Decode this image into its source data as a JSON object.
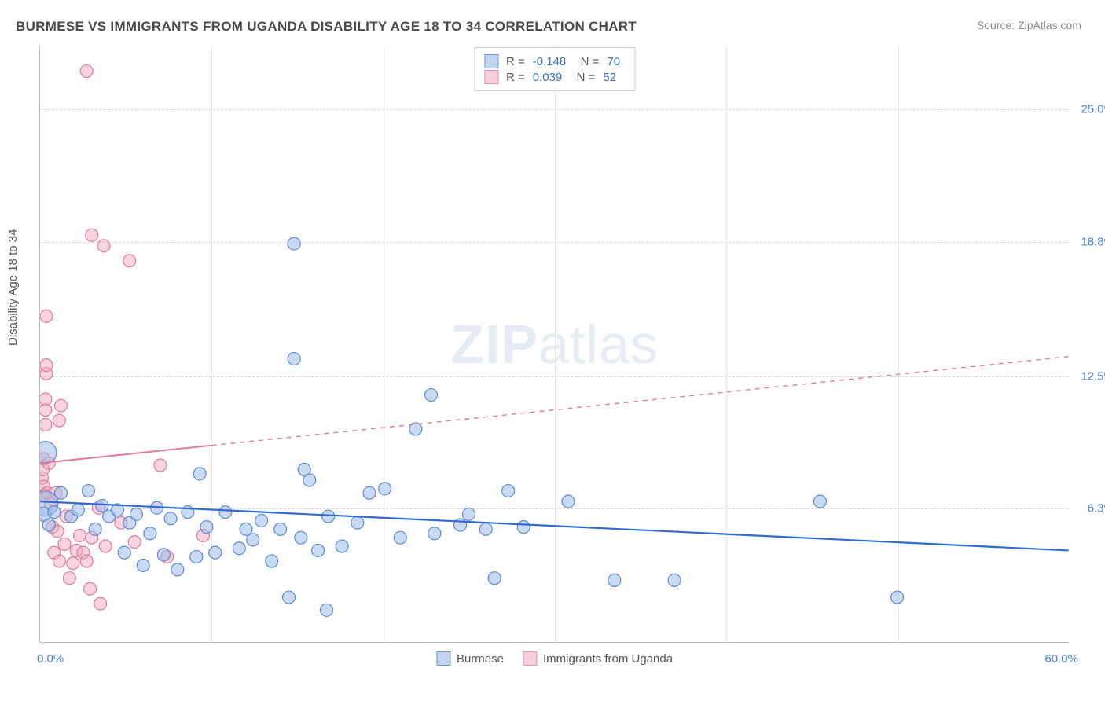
{
  "title": "BURMESE VS IMMIGRANTS FROM UGANDA DISABILITY AGE 18 TO 34 CORRELATION CHART",
  "source": "Source: ZipAtlas.com",
  "ylabel": "Disability Age 18 to 34",
  "watermark_bold": "ZIP",
  "watermark_light": "atlas",
  "chart": {
    "type": "scatter",
    "xlim": [
      0,
      60
    ],
    "ylim": [
      0,
      28
    ],
    "yticks": [
      {
        "v": 6.3,
        "label": "6.3%"
      },
      {
        "v": 12.5,
        "label": "12.5%"
      },
      {
        "v": 18.8,
        "label": "18.8%"
      },
      {
        "v": 25.0,
        "label": "25.0%"
      }
    ],
    "xticks_grid": [
      10,
      20,
      30,
      40,
      50
    ],
    "x_left_label": "0.0%",
    "x_right_label": "60.0%",
    "background_color": "#ffffff",
    "grid_color": "#d8d8d8",
    "series": [
      {
        "name": "Burmese",
        "fill": "#9fbce8",
        "fill_opacity": 0.55,
        "stroke": "#5b8ad6",
        "legend_fill": "#c3d4ef",
        "legend_border": "#6b97db",
        "trend_color": "#2f6bd0",
        "trend_width": 2.2,
        "trend_solid_to_x": 60,
        "R": "-0.148",
        "N": "70",
        "trend": {
          "y0": 6.6,
          "y60": 4.3
        },
        "points": [
          {
            "x": 0.3,
            "y": 6.5,
            "r": 16
          },
          {
            "x": 0.3,
            "y": 8.9,
            "r": 14
          },
          {
            "x": 0.2,
            "y": 6.0,
            "r": 9
          },
          {
            "x": 0.5,
            "y": 5.5,
            "r": 8
          },
          {
            "x": 0.8,
            "y": 6.1,
            "r": 8
          },
          {
            "x": 1.2,
            "y": 7.0,
            "r": 8
          },
          {
            "x": 1.8,
            "y": 5.9,
            "r": 8
          },
          {
            "x": 2.2,
            "y": 6.2,
            "r": 8
          },
          {
            "x": 2.8,
            "y": 7.1,
            "r": 8
          },
          {
            "x": 3.2,
            "y": 5.3,
            "r": 8
          },
          {
            "x": 3.6,
            "y": 6.4,
            "r": 8
          },
          {
            "x": 4.0,
            "y": 5.9,
            "r": 8
          },
          {
            "x": 4.5,
            "y": 6.2,
            "r": 8
          },
          {
            "x": 4.9,
            "y": 4.2,
            "r": 8
          },
          {
            "x": 5.2,
            "y": 5.6,
            "r": 8
          },
          {
            "x": 5.6,
            "y": 6.0,
            "r": 8
          },
          {
            "x": 6.0,
            "y": 3.6,
            "r": 8
          },
          {
            "x": 6.4,
            "y": 5.1,
            "r": 8
          },
          {
            "x": 6.8,
            "y": 6.3,
            "r": 8
          },
          {
            "x": 7.2,
            "y": 4.1,
            "r": 8
          },
          {
            "x": 7.6,
            "y": 5.8,
            "r": 8
          },
          {
            "x": 8.0,
            "y": 3.4,
            "r": 8
          },
          {
            "x": 8.6,
            "y": 6.1,
            "r": 8
          },
          {
            "x": 9.1,
            "y": 4.0,
            "r": 8
          },
          {
            "x": 9.3,
            "y": 7.9,
            "r": 8
          },
          {
            "x": 9.7,
            "y": 5.4,
            "r": 8
          },
          {
            "x": 10.2,
            "y": 4.2,
            "r": 8
          },
          {
            "x": 10.8,
            "y": 6.1,
            "r": 8
          },
          {
            "x": 11.6,
            "y": 4.4,
            "r": 8
          },
          {
            "x": 12.0,
            "y": 5.3,
            "r": 8
          },
          {
            "x": 12.4,
            "y": 4.8,
            "r": 8
          },
          {
            "x": 12.9,
            "y": 5.7,
            "r": 8
          },
          {
            "x": 13.5,
            "y": 3.8,
            "r": 8
          },
          {
            "x": 14.0,
            "y": 5.3,
            "r": 8
          },
          {
            "x": 14.5,
            "y": 2.1,
            "r": 8
          },
          {
            "x": 14.8,
            "y": 18.7,
            "r": 8
          },
          {
            "x": 14.8,
            "y": 13.3,
            "r": 8
          },
          {
            "x": 15.2,
            "y": 4.9,
            "r": 8
          },
          {
            "x": 15.4,
            "y": 8.1,
            "r": 8
          },
          {
            "x": 15.7,
            "y": 7.6,
            "r": 8
          },
          {
            "x": 16.2,
            "y": 4.3,
            "r": 8
          },
          {
            "x": 16.7,
            "y": 1.5,
            "r": 8
          },
          {
            "x": 16.8,
            "y": 5.9,
            "r": 8
          },
          {
            "x": 17.6,
            "y": 4.5,
            "r": 8
          },
          {
            "x": 18.5,
            "y": 5.6,
            "r": 8
          },
          {
            "x": 19.2,
            "y": 7.0,
            "r": 8
          },
          {
            "x": 20.1,
            "y": 7.2,
            "r": 8
          },
          {
            "x": 21.0,
            "y": 4.9,
            "r": 8
          },
          {
            "x": 21.9,
            "y": 10.0,
            "r": 8
          },
          {
            "x": 22.8,
            "y": 11.6,
            "r": 8
          },
          {
            "x": 23.0,
            "y": 5.1,
            "r": 8
          },
          {
            "x": 24.5,
            "y": 5.5,
            "r": 8
          },
          {
            "x": 25.0,
            "y": 6.0,
            "r": 8
          },
          {
            "x": 26.0,
            "y": 5.3,
            "r": 8
          },
          {
            "x": 26.5,
            "y": 3.0,
            "r": 8
          },
          {
            "x": 27.3,
            "y": 7.1,
            "r": 8
          },
          {
            "x": 28.2,
            "y": 5.4,
            "r": 8
          },
          {
            "x": 30.8,
            "y": 6.6,
            "r": 8
          },
          {
            "x": 33.5,
            "y": 2.9,
            "r": 8
          },
          {
            "x": 37.0,
            "y": 2.9,
            "r": 8
          },
          {
            "x": 45.5,
            "y": 6.6,
            "r": 8
          },
          {
            "x": 50.0,
            "y": 2.1,
            "r": 8
          }
        ]
      },
      {
        "name": "Immigrants from Uganda",
        "fill": "#f0aabf",
        "fill_opacity": 0.5,
        "stroke": "#e07a9a",
        "legend_fill": "#f6cfdb",
        "legend_border": "#e48faa",
        "trend_color": "#e07a9a",
        "trend_width": 2,
        "trend_solid_to_x": 10,
        "R": "0.039",
        "N": "52",
        "trend": {
          "y0": 8.4,
          "y60": 13.4
        },
        "points": [
          {
            "x": 0.1,
            "y": 7.7,
            "r": 8
          },
          {
            "x": 0.15,
            "y": 8.1,
            "r": 8
          },
          {
            "x": 0.2,
            "y": 7.3,
            "r": 8
          },
          {
            "x": 0.2,
            "y": 8.6,
            "r": 8
          },
          {
            "x": 0.25,
            "y": 6.9,
            "r": 8
          },
          {
            "x": 0.3,
            "y": 10.2,
            "r": 8
          },
          {
            "x": 0.3,
            "y": 10.9,
            "r": 8
          },
          {
            "x": 0.3,
            "y": 11.4,
            "r": 8
          },
          {
            "x": 0.35,
            "y": 12.6,
            "r": 8
          },
          {
            "x": 0.35,
            "y": 13.0,
            "r": 8
          },
          {
            "x": 0.35,
            "y": 15.3,
            "r": 8
          },
          {
            "x": 0.4,
            "y": 7.0,
            "r": 8
          },
          {
            "x": 0.5,
            "y": 8.4,
            "r": 8
          },
          {
            "x": 0.6,
            "y": 6.5,
            "r": 8
          },
          {
            "x": 0.7,
            "y": 5.4,
            "r": 8
          },
          {
            "x": 0.8,
            "y": 4.2,
            "r": 8
          },
          {
            "x": 0.9,
            "y": 7.0,
            "r": 8
          },
          {
            "x": 1.0,
            "y": 5.2,
            "r": 8
          },
          {
            "x": 1.1,
            "y": 3.8,
            "r": 8
          },
          {
            "x": 1.1,
            "y": 10.4,
            "r": 8
          },
          {
            "x": 1.2,
            "y": 11.1,
            "r": 8
          },
          {
            "x": 1.4,
            "y": 4.6,
            "r": 8
          },
          {
            "x": 1.5,
            "y": 5.9,
            "r": 8
          },
          {
            "x": 1.7,
            "y": 3.0,
            "r": 8
          },
          {
            "x": 1.9,
            "y": 3.7,
            "r": 8
          },
          {
            "x": 2.1,
            "y": 4.3,
            "r": 8
          },
          {
            "x": 2.3,
            "y": 5.0,
            "r": 8
          },
          {
            "x": 2.5,
            "y": 4.2,
            "r": 8
          },
          {
            "x": 2.7,
            "y": 3.8,
            "r": 8
          },
          {
            "x": 2.7,
            "y": 26.8,
            "r": 8
          },
          {
            "x": 2.9,
            "y": 2.5,
            "r": 8
          },
          {
            "x": 3.0,
            "y": 4.9,
            "r": 8
          },
          {
            "x": 3.0,
            "y": 19.1,
            "r": 8
          },
          {
            "x": 3.4,
            "y": 6.3,
            "r": 8
          },
          {
            "x": 3.5,
            "y": 1.8,
            "r": 8
          },
          {
            "x": 3.7,
            "y": 18.6,
            "r": 8
          },
          {
            "x": 3.8,
            "y": 4.5,
            "r": 8
          },
          {
            "x": 4.7,
            "y": 5.6,
            "r": 8
          },
          {
            "x": 5.2,
            "y": 17.9,
            "r": 8
          },
          {
            "x": 5.5,
            "y": 4.7,
            "r": 8
          },
          {
            "x": 7.0,
            "y": 8.3,
            "r": 8
          },
          {
            "x": 7.4,
            "y": 4.0,
            "r": 8
          },
          {
            "x": 9.5,
            "y": 5.0,
            "r": 8
          }
        ]
      }
    ]
  },
  "legend_bottom": [
    "Burmese",
    "Immigrants from Uganda"
  ]
}
